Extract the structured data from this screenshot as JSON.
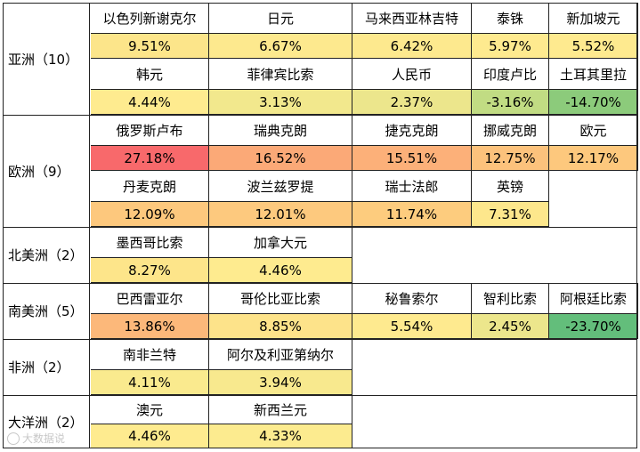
{
  "regions": [
    {
      "label": "亚洲（10）",
      "rows": [
        [
          {
            "name": "以色列新谢克尔",
            "value": "9.51%",
            "color": "#fce58a"
          },
          {
            "name": "日元",
            "value": "6.67%",
            "color": "#fde98e"
          },
          {
            "name": "马来西亚林吉特",
            "value": "6.42%",
            "color": "#fde98e"
          },
          {
            "name": "泰铢",
            "value": "5.97%",
            "color": "#feea8f"
          },
          {
            "name": "新加坡元",
            "value": "5.52%",
            "color": "#feea8f"
          }
        ],
        [
          {
            "name": "韩元",
            "value": "4.44%",
            "color": "#feeb8f"
          },
          {
            "name": "菲律宾比索",
            "value": "3.13%",
            "color": "#f2e88d"
          },
          {
            "name": "人民币",
            "value": "2.37%",
            "color": "#ece68c"
          },
          {
            "name": "印度卢比",
            "value": "-3.16%",
            "color": "#c1dc83"
          },
          {
            "name": "土耳其里拉",
            "value": "-14.70%",
            "color": "#8ccb7b"
          }
        ]
      ]
    },
    {
      "label": "欧洲（9）",
      "rows": [
        [
          {
            "name": "俄罗斯卢布",
            "value": "27.18%",
            "color": "#f8696b"
          },
          {
            "name": "瑞典克朗",
            "value": "16.52%",
            "color": "#fba977"
          },
          {
            "name": "捷克克朗",
            "value": "15.51%",
            "color": "#fcb079"
          },
          {
            "name": "挪威克朗",
            "value": "12.75%",
            "color": "#fcc27c"
          },
          {
            "name": "欧元",
            "value": "12.17%",
            "color": "#fdc87d"
          }
        ],
        [
          {
            "name": "丹麦克朗",
            "value": "12.09%",
            "color": "#fdc87d"
          },
          {
            "name": "波兰兹罗提",
            "value": "12.01%",
            "color": "#fdc97e"
          },
          {
            "name": "瑞士法郎",
            "value": "11.74%",
            "color": "#fdcc7e"
          },
          {
            "name": "英镑",
            "value": "7.31%",
            "color": "#fde78c"
          }
        ]
      ]
    },
    {
      "label": "北美洲（2）",
      "rows": [
        [
          {
            "name": "墨西哥比索",
            "value": "8.27%",
            "color": "#fde58a"
          },
          {
            "name": "加拿大元",
            "value": "4.46%",
            "color": "#feeb8f"
          }
        ]
      ]
    },
    {
      "label": "南美洲（5）",
      "rows": [
        [
          {
            "name": "巴西雷亚尔",
            "value": "13.86%",
            "color": "#fcb87a"
          },
          {
            "name": "哥伦比亚比索",
            "value": "8.85%",
            "color": "#fde38a"
          },
          {
            "name": "秘鲁索尔",
            "value": "5.54%",
            "color": "#feea8f"
          },
          {
            "name": "智利比索",
            "value": "2.45%",
            "color": "#ece68c"
          },
          {
            "name": "阿根廷比索",
            "value": "-23.70%",
            "color": "#63be7b"
          }
        ]
      ]
    },
    {
      "label": "非洲（2）",
      "rows": [
        [
          {
            "name": "南非兰特",
            "value": "4.11%",
            "color": "#faea8e"
          },
          {
            "name": "阿尔及利亚第纳尔",
            "value": "3.94%",
            "color": "#f8e98e"
          }
        ]
      ]
    },
    {
      "label": "大洋洲（2）",
      "rows": [
        [
          {
            "name": "澳元",
            "value": "4.46%",
            "color": "#feeb8f"
          },
          {
            "name": "新西兰元",
            "value": "4.33%",
            "color": "#fceb8f"
          }
        ]
      ]
    }
  ],
  "watermark": "大数据说"
}
